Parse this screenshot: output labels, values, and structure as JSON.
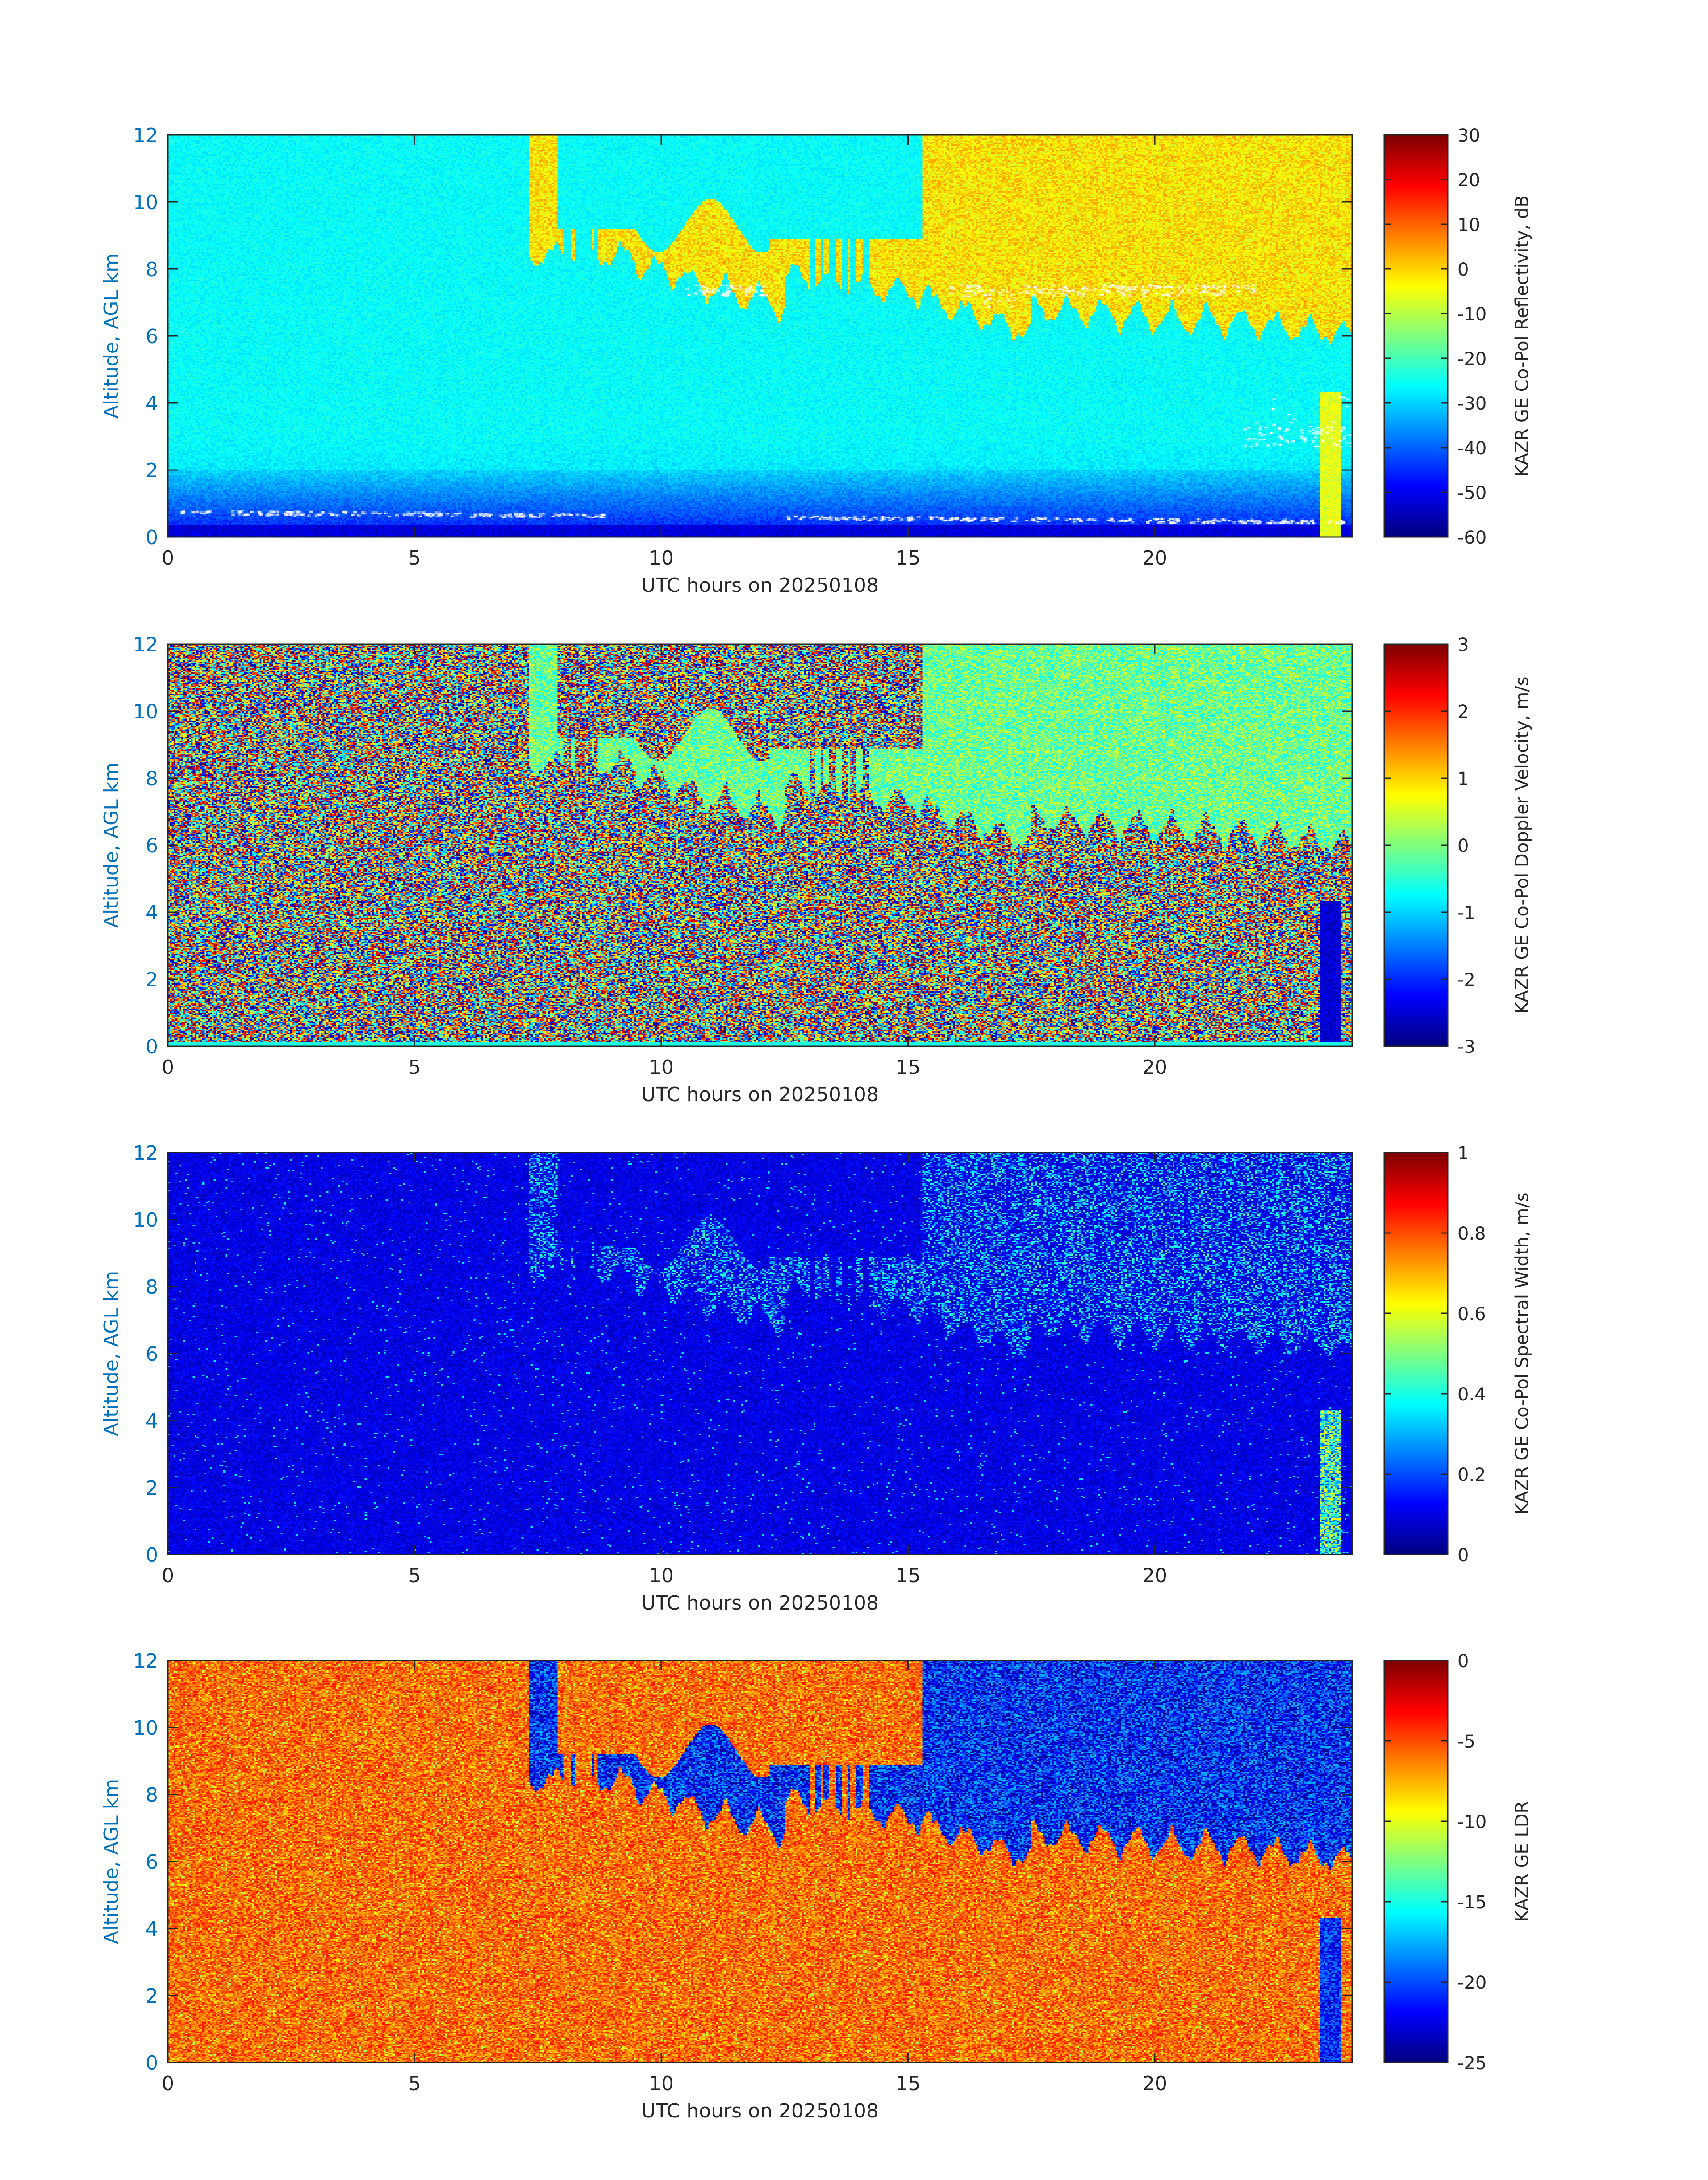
{
  "figure": {
    "background": "#ffffff",
    "axis_color": "#262626",
    "ylabel_color": "#0072bd",
    "colormap": "jet"
  },
  "chart_data": [
    {
      "type": "heatmap",
      "title": "",
      "xlabel": "UTC hours on 20250108",
      "ylabel": "Altitude, AGL km",
      "xlim": [
        0,
        24
      ],
      "ylim": [
        0,
        12
      ],
      "xticks": [
        0,
        5,
        10,
        15,
        20
      ],
      "yticks": [
        0,
        2,
        4,
        6,
        8,
        10,
        12
      ],
      "grid": false,
      "colorbar": {
        "label": "KAZR GE Co-Pol Reflectivity, dB",
        "clim": [
          -60,
          30
        ],
        "ticks": [
          30,
          20,
          10,
          0,
          -10,
          -20,
          -30,
          -40,
          -50,
          -60
        ]
      },
      "variable": "reflectivity",
      "background_level": [
        -32,
        -26
      ],
      "near_surface_level": -52,
      "cloud_level": [
        -8,
        5
      ],
      "clutter_points_color": "#ffffff"
    },
    {
      "type": "heatmap",
      "title": "",
      "xlabel": "UTC hours on 20250108",
      "ylabel": "Altitude, AGL km",
      "xlim": [
        0,
        24
      ],
      "ylim": [
        0,
        12
      ],
      "xticks": [
        0,
        5,
        10,
        15,
        20
      ],
      "yticks": [
        0,
        2,
        4,
        6,
        8,
        10,
        12
      ],
      "grid": false,
      "colorbar": {
        "label": "KAZR GE Co-Pol Doppler Velocity, m/s",
        "clim": [
          -3,
          3
        ],
        "ticks": [
          3,
          2,
          1,
          0,
          -1,
          -2,
          -3
        ]
      },
      "variable": "doppler_velocity",
      "background_level": "noise (full range)",
      "cloud_level": [
        -0.8,
        0.6
      ]
    },
    {
      "type": "heatmap",
      "title": "",
      "xlabel": "UTC hours on 20250108",
      "ylabel": "Altitude, AGL km",
      "xlim": [
        0,
        24
      ],
      "ylim": [
        0,
        12
      ],
      "xticks": [
        0,
        5,
        10,
        15,
        20
      ],
      "yticks": [
        0,
        2,
        4,
        6,
        8,
        10,
        12
      ],
      "grid": false,
      "colorbar": {
        "label": "KAZR GE Co-Pol Spectral Width, m/s",
        "clim": [
          0,
          1
        ],
        "ticks": [
          1,
          0.8,
          0.6,
          0.4,
          0.2,
          0
        ]
      },
      "variable": "spectral_width",
      "background_level": [
        0.05,
        0.15
      ],
      "cloud_level": [
        0.2,
        0.45
      ]
    },
    {
      "type": "heatmap",
      "title": "",
      "xlabel": "UTC hours on 20250108",
      "ylabel": "Altitude, AGL km",
      "xlim": [
        0,
        24
      ],
      "ylim": [
        0,
        12
      ],
      "xticks": [
        0,
        5,
        10,
        15,
        20
      ],
      "yticks": [
        0,
        2,
        4,
        6,
        8,
        10,
        12
      ],
      "grid": false,
      "colorbar": {
        "label": "KAZR GE LDR",
        "clim": [
          -25,
          0
        ],
        "ticks": [
          0,
          -5,
          -10,
          -15,
          -20,
          -25
        ]
      },
      "variable": "ldr",
      "background_level": [
        -8,
        -3
      ],
      "cloud_level": [
        -25,
        -17
      ]
    }
  ]
}
